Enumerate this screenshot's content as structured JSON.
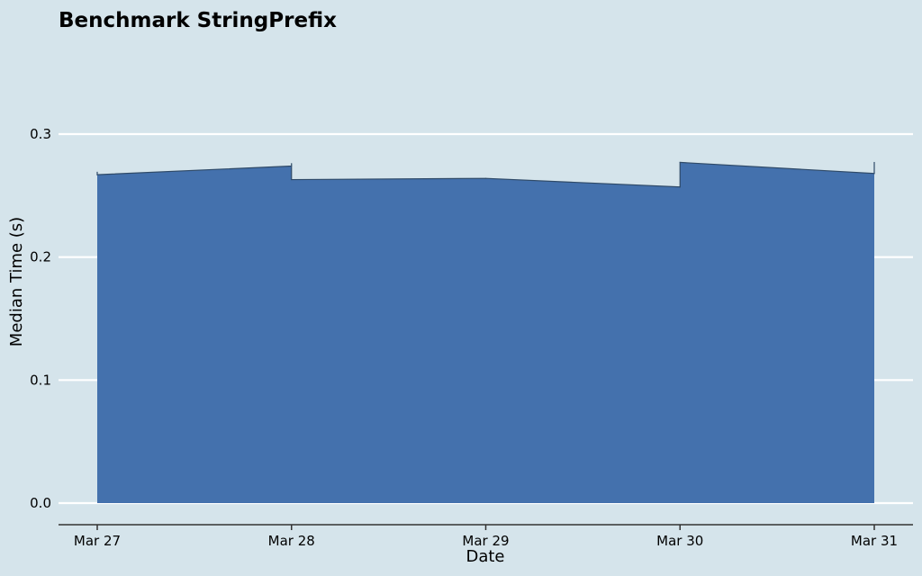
{
  "chart_data": {
    "type": "area",
    "title": "Benchmark StringPrefix",
    "xlabel": "Date",
    "ylabel": "Median Time (s)",
    "x_tick_labels": [
      "Mar 27",
      "Mar 28",
      "Mar 29",
      "Mar 30",
      "Mar 31"
    ],
    "y_tick_labels": [
      "0.0",
      "0.1",
      "0.2",
      "0.3"
    ],
    "y_ticks": [
      0.0,
      0.1,
      0.2,
      0.3
    ],
    "ylim": [
      0.0,
      0.3
    ],
    "xlim": [
      "Mar 27",
      "Mar 31"
    ],
    "grid": "horizontal",
    "colors": {
      "area_fill": "#4471ad",
      "area_edge": "#2f4a68",
      "background": "#d5e4eb",
      "grid": "#ffffff",
      "axis": "#333333"
    },
    "series": [
      {
        "points": [
          {
            "x": "Mar 27",
            "y": 0.269
          },
          {
            "x": "Mar 27",
            "y": 0.267
          },
          {
            "x": "Mar 28",
            "y": 0.274
          },
          {
            "x": "Mar 28",
            "y": 0.276
          },
          {
            "x": "Mar 28",
            "y": 0.263
          },
          {
            "x": "Mar 29",
            "y": 0.264
          },
          {
            "x": "Mar 30",
            "y": 0.257
          },
          {
            "x": "Mar 30",
            "y": 0.277
          },
          {
            "x": "Mar 31",
            "y": 0.268
          },
          {
            "x": "Mar 31",
            "y": 0.277
          }
        ]
      }
    ]
  }
}
